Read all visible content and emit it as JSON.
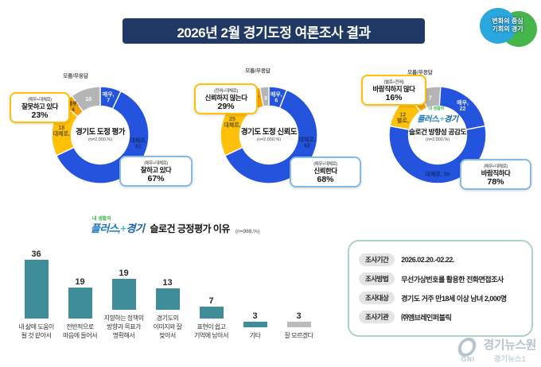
{
  "page": {
    "title": "2026년 2월 경기도정 여론조사 결과"
  },
  "header_logo": {
    "line1": "변화의 중심",
    "line2": "기회의 경기"
  },
  "slogan_logo": {
    "tagline": "내 생활의",
    "part1": "플러스,",
    "plus": "+",
    "part2": "경기"
  },
  "colors": {
    "navy": "#1f3864",
    "blue": "#2453dd",
    "yellow": "#ffc009",
    "orange": "#f5a100",
    "gray": "#b5b5b5",
    "teal": "#3e8d98",
    "bar_gray": "#bcbcbc"
  },
  "chart_data": [
    {
      "type": "donut",
      "title": "경기도 도정 평가",
      "subtitle": "(n=2,000,%)",
      "outside_label": {
        "text": "모름/무응답",
        "angle": 337,
        "r": 79
      },
      "segments": [
        {
          "name": "매우",
          "value": 7,
          "color": "blue",
          "lines": [
            "매우,",
            "7"
          ],
          "tcolor": "#eaf0ff",
          "angle": 12,
          "lr": 49
        },
        {
          "name": "대체로",
          "value": 61,
          "color": "blue",
          "lines": [
            "대체로,",
            "61"
          ],
          "tcolor": "#16307d",
          "angle": 102,
          "lr": 49
        },
        {
          "name": "대체로",
          "value": 18,
          "color": "yellow",
          "lines": [
            "18",
            "대체로,"
          ],
          "tcolor": "#6d5a10",
          "angle": 277,
          "lr": 49
        },
        {
          "name": "매우",
          "value": 4,
          "color": "orange",
          "lines": [
            "매우,",
            "4"
          ],
          "tcolor": "#4a3a08",
          "angle": 317,
          "lr": 50,
          "fs": 6.5
        },
        {
          "name": "모름/무응답",
          "value": 10,
          "color": "gray",
          "lines": [
            "10"
          ],
          "tcolor": "#ffffff",
          "angle": 342,
          "lr": 48
        }
      ],
      "callout_negative": {
        "cond": "(매우+대체로)",
        "label": "잘못하고 있다",
        "value": "23%"
      },
      "callout_positive": {
        "cond": "(매우+대체로)",
        "label": "잘하고 있다",
        "value": "67%"
      }
    },
    {
      "type": "donut",
      "title": "경기도 도정 신뢰도",
      "subtitle": "(n=2,000,%)",
      "outside_label": {
        "text": "모름/무응답",
        "angle": 350,
        "r": 80
      },
      "segments": [
        {
          "name": "매우",
          "value": 6,
          "color": "blue",
          "lines": [
            "매우,",
            "6"
          ],
          "tcolor": "#eaf0ff",
          "angle": 11,
          "lr": 49
        },
        {
          "name": "대체로",
          "value": 62,
          "color": "blue",
          "lines": [
            "대체로,",
            "62"
          ],
          "tcolor": "#16307d",
          "angle": 101,
          "lr": 49
        },
        {
          "name": "대체로",
          "value": 25,
          "color": "yellow",
          "lines": [
            "25",
            "대체로,"
          ],
          "tcolor": "#6d5a10",
          "angle": 290,
          "lr": 49
        },
        {
          "name": "전혀",
          "value": 4,
          "color": "orange",
          "lines": [
            "전혀,",
            "4"
          ],
          "tcolor": "#4a3a08",
          "angle": 339,
          "lr": 51,
          "fs": 6.5
        },
        {
          "name": "모름/무응답",
          "value": 3,
          "color": "gray",
          "lines": [
            "3"
          ],
          "tcolor": "#ffffff",
          "angle": 355,
          "lr": 47,
          "fs": 6.5
        }
      ],
      "callout_negative": {
        "cond": "(전혀+대체로)",
        "label": "신뢰하지 않는다",
        "value": "29%"
      },
      "callout_positive": {
        "cond": "(매우+대체로)",
        "label": "신뢰한다",
        "value": "68%"
      }
    },
    {
      "type": "donut",
      "title": "슬로건 방향성 공감도",
      "subtitle": "(n=2,000,%)",
      "has_logo": true,
      "outside_label": {
        "text": "모름/무응답",
        "angle": 344,
        "r": 80
      },
      "segments": [
        {
          "name": "매우",
          "value": 22,
          "color": "blue",
          "lines": [
            "매우,",
            "22"
          ],
          "tcolor": "#eaf0ff",
          "angle": 40,
          "lr": 49
        },
        {
          "name": "대체로",
          "value": 56,
          "color": "blue",
          "lines": [
            "대체로, 56"
          ],
          "tcolor": "#16307d",
          "angle": 180,
          "lr": 49
        },
        {
          "name": "별로",
          "value": 12,
          "color": "yellow",
          "lines": [
            "12",
            "별로,"
          ],
          "tcolor": "#6d5a10",
          "angle": 297,
          "lr": 49
        },
        {
          "name": "전혀",
          "value": 4,
          "color": "orange",
          "lines": [
            "전혀,",
            "4"
          ],
          "tcolor": "#4a3a08",
          "angle": 331,
          "lr": 50,
          "fs": 6.5
        },
        {
          "name": "모름/무응답",
          "value": 7,
          "color": "gray",
          "lines": [
            "7"
          ],
          "tcolor": "#ffffff",
          "angle": 349,
          "lr": 48
        }
      ],
      "callout_negative": {
        "cond": "(별로+전혀)",
        "label": "바람직하지 않다",
        "value": "16%"
      },
      "callout_positive": {
        "cond": "(매우+대체로)",
        "label": "바람직하다",
        "value": "78%"
      }
    },
    {
      "type": "bar",
      "title": "슬로건 긍정평가 이유",
      "subtitle": "(n=988,%)",
      "categories": [
        "내 삶에 도움이\n될 것 같아서",
        "전반적으로\n마음에 들어서",
        "지향하는 정책의\n방향과 목표가\n명확해서",
        "경기도의\n이미지와 잘\n맞아서",
        "표현이 쉽고\n기억에 남아서",
        "기타",
        "잘 모르겠다"
      ],
      "values": [
        36,
        19,
        19,
        13,
        7,
        3,
        3
      ],
      "bar_colors": [
        "teal",
        "teal",
        "teal",
        "teal",
        "teal",
        "teal",
        "bar_gray"
      ],
      "ylim": [
        0,
        40
      ]
    }
  ],
  "survey_info": {
    "rows": [
      {
        "label": "조사기간",
        "value": "2026.02.20.-02.22."
      },
      {
        "label": "조사방법",
        "value": "무선가상번호를 활용한 전화면접조사"
      },
      {
        "label": "조사대상",
        "value": "경기도 거주 만18세 이상 남녀 2,000명"
      },
      {
        "label": "조사기관",
        "value": "㈜엠브레인퍼블릭"
      }
    ]
  },
  "watermark": {
    "logo": "GNI",
    "line1": "경기뉴스원",
    "line2": "경기뉴스1"
  }
}
